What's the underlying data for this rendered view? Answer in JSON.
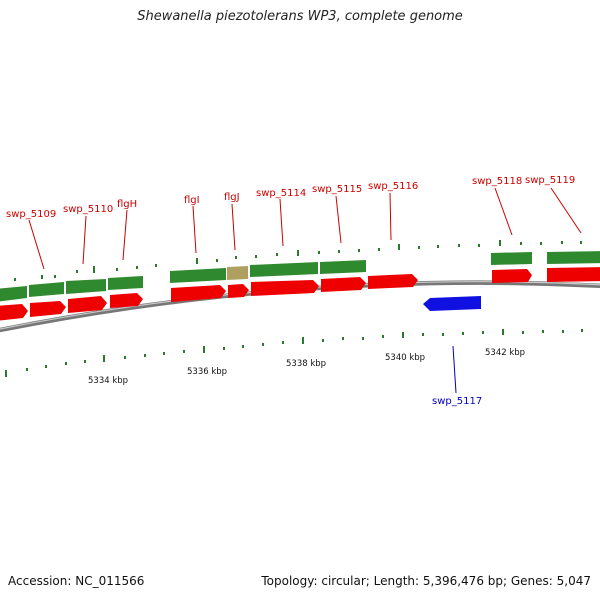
{
  "title": "Shewanella piezotolerans WP3, complete genome",
  "accession": "Accession: NC_011566",
  "summary": "Topology: circular; Length: 5,396,476 bp; Genes: 5,047",
  "colors": {
    "cds_red": "#ee0000",
    "gene_green": "#2f8a2f",
    "reverse_blue": "#1010e0",
    "label_red": "#cc0000",
    "label_blue": "#0000bb",
    "backbone": "#9a9a9a",
    "tick_green": "#2a7a2a"
  },
  "scale": {
    "unit": "kbp",
    "labels": [
      "5334 kbp",
      "5336 kbp",
      "5338 kbp",
      "5340 kbp",
      "5342 kbp"
    ]
  },
  "gene_labels": [
    {
      "name": "swp_5109",
      "strand": "+"
    },
    {
      "name": "swp_5110",
      "strand": "+"
    },
    {
      "name": "flgH",
      "strand": "+"
    },
    {
      "name": "flgI",
      "strand": "+"
    },
    {
      "name": "flgJ",
      "strand": "+"
    },
    {
      "name": "swp_5114",
      "strand": "+"
    },
    {
      "name": "swp_5115",
      "strand": "+"
    },
    {
      "name": "swp_5116",
      "strand": "+"
    },
    {
      "name": "swp_5118",
      "strand": "+"
    },
    {
      "name": "swp_5119",
      "strand": "+"
    },
    {
      "name": "swp_5117",
      "strand": "-"
    }
  ]
}
